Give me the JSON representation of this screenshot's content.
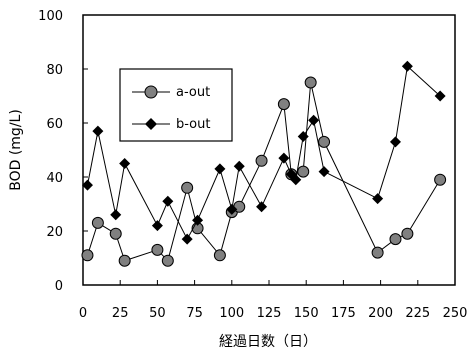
{
  "chart_data": {
    "type": "line",
    "xlabel": "経過日数（日）",
    "ylabel": "BOD (mg/L)",
    "xlim": [
      0,
      250
    ],
    "ylim": [
      0,
      100
    ],
    "xticks": [
      0,
      25,
      50,
      75,
      100,
      125,
      150,
      175,
      200,
      225,
      250
    ],
    "yticks": [
      0,
      20,
      40,
      60,
      80,
      100
    ],
    "grid": false,
    "legend_position": "upper-left (inside)",
    "series": [
      {
        "name": "a-out",
        "marker": "circle",
        "marker_color": "#808080",
        "line_color": "#000000",
        "x": [
          3,
          10,
          22,
          28,
          50,
          57,
          70,
          77,
          92,
          100,
          105,
          120,
          135,
          140,
          148,
          153,
          162,
          198,
          210,
          218,
          240
        ],
        "y": [
          11,
          23,
          19,
          9,
          13,
          9,
          36,
          21,
          11,
          27,
          29,
          46,
          67,
          41,
          42,
          75,
          53,
          12,
          17,
          19,
          39
        ]
      },
      {
        "name": "b-out",
        "marker": "diamond",
        "marker_color": "#000000",
        "line_color": "#000000",
        "x": [
          3,
          10,
          22,
          28,
          50,
          57,
          70,
          77,
          92,
          100,
          105,
          120,
          135,
          140,
          143,
          148,
          155,
          162,
          198,
          210,
          218,
          240
        ],
        "y": [
          37,
          57,
          26,
          45,
          22,
          31,
          17,
          24,
          43,
          28,
          44,
          29,
          47,
          41,
          39,
          55,
          61,
          42,
          32,
          53,
          81,
          70
        ]
      }
    ]
  }
}
